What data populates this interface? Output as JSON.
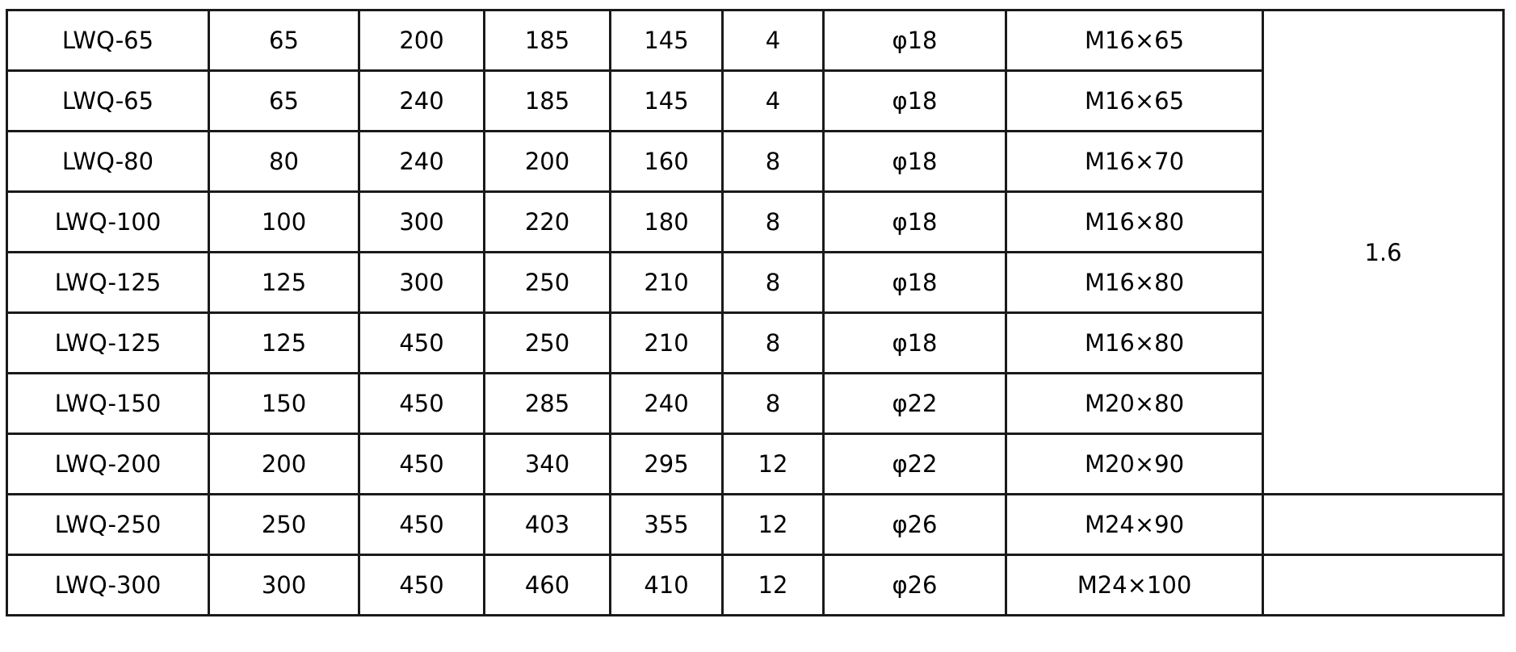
{
  "table": {
    "rows": [
      [
        "LWQ-65",
        "65",
        "200",
        "185",
        "145",
        "4",
        "φ18",
        "M16×65"
      ],
      [
        "LWQ-65",
        "65",
        "240",
        "185",
        "145",
        "4",
        "φ18",
        "M16×65"
      ],
      [
        "LWQ-80",
        "80",
        "240",
        "200",
        "160",
        "8",
        "φ18",
        "M16×70"
      ],
      [
        "LWQ-100",
        "100",
        "300",
        "220",
        "180",
        "8",
        "φ18",
        "M16×80"
      ],
      [
        "LWQ-125",
        "125",
        "300",
        "250",
        "210",
        "8",
        "φ18",
        "M16×80"
      ],
      [
        "LWQ-125",
        "125",
        "450",
        "250",
        "210",
        "8",
        "φ18",
        "M16×80"
      ],
      [
        "LWQ-150",
        "150",
        "450",
        "285",
        "240",
        "8",
        "φ22",
        "M20×80"
      ],
      [
        "LWQ-200",
        "200",
        "450",
        "340",
        "295",
        "12",
        "φ22",
        "M20×90"
      ],
      [
        "LWQ-250",
        "250",
        "450",
        "403",
        "355",
        "12",
        "φ26",
        "M24×90"
      ],
      [
        "LWQ-300",
        "300",
        "450",
        "460",
        "410",
        "12",
        "φ26",
        "M24×100"
      ]
    ],
    "pressure_merged": "1.6",
    "pressure_row9": "",
    "pressure_row10": ""
  }
}
